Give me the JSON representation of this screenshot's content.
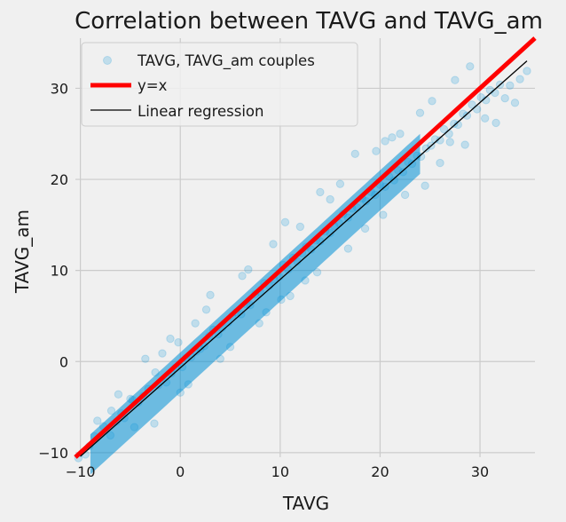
{
  "chart_data": {
    "type": "scatter",
    "title": "Correlation between TAVG and TAVG_am",
    "xlabel": "TAVG",
    "ylabel": "TAVG_am",
    "xlim": [
      -10.5,
      35.5
    ],
    "ylim": [
      -10.5,
      35.5
    ],
    "xticks": [
      -10,
      0,
      10,
      20,
      30
    ],
    "yticks": [
      -10,
      0,
      10,
      20,
      30
    ],
    "grid": true,
    "legend_position": "top-left",
    "series": [
      {
        "name": "TAVG, TAVG_am couples",
        "kind": "scatter",
        "color": "#008fd5",
        "alpha": 0.2,
        "points": [
          [
            -10.2,
            -10.6
          ],
          [
            -9.5,
            -10.2
          ],
          [
            -9.1,
            -9.3
          ],
          [
            -8.6,
            -8.2
          ],
          [
            -7.7,
            -7.1
          ],
          [
            -6.9,
            -5.4
          ],
          [
            -6.4,
            -6.6
          ],
          [
            -5.9,
            -5.7
          ],
          [
            -5.6,
            -6.2
          ],
          [
            -5.0,
            -4.1
          ],
          [
            -4.8,
            -4.2
          ],
          [
            -4.2,
            -4.5
          ],
          [
            -3.7,
            -3.8
          ],
          [
            -3.2,
            -3.0
          ],
          [
            -2.5,
            -1.2
          ],
          [
            -2.2,
            -2.6
          ],
          [
            -1.4,
            -2.3
          ],
          [
            -0.9,
            -1.3
          ],
          [
            -0.5,
            -0.7
          ],
          [
            0.2,
            -0.6
          ],
          [
            0.6,
            0.4
          ],
          [
            1.1,
            0.5
          ],
          [
            1.6,
            1.1
          ],
          [
            2.0,
            1.4
          ],
          [
            2.4,
            1.7
          ],
          [
            2.9,
            2.8
          ],
          [
            3.3,
            3.5
          ],
          [
            3.8,
            3.0
          ],
          [
            4.2,
            3.7
          ],
          [
            4.8,
            4.3
          ],
          [
            5.2,
            5.0
          ],
          [
            5.6,
            5.4
          ],
          [
            6.1,
            5.2
          ],
          [
            6.6,
            6.3
          ],
          [
            7.0,
            6.2
          ],
          [
            7.5,
            7.4
          ],
          [
            8.0,
            7.6
          ],
          [
            8.4,
            8.6
          ],
          [
            8.9,
            8.3
          ],
          [
            9.4,
            9.0
          ],
          [
            9.9,
            9.3
          ],
          [
            10.3,
            10.6
          ],
          [
            10.8,
            10.1
          ],
          [
            11.3,
            11.4
          ],
          [
            11.7,
            11.0
          ],
          [
            12.2,
            11.9
          ],
          [
            12.6,
            12.6
          ],
          [
            13.1,
            12.3
          ],
          [
            13.6,
            13.3
          ],
          [
            14.0,
            13.2
          ],
          [
            14.5,
            14.3
          ],
          [
            15.0,
            14.1
          ],
          [
            15.4,
            14.9
          ],
          [
            15.9,
            15.2
          ],
          [
            16.3,
            16.2
          ],
          [
            16.8,
            15.8
          ],
          [
            17.2,
            16.8
          ],
          [
            17.7,
            16.9
          ],
          [
            18.2,
            17.9
          ],
          [
            18.6,
            17.6
          ],
          [
            19.1,
            18.6
          ],
          [
            19.5,
            18.3
          ],
          [
            20.0,
            19.4
          ],
          [
            20.5,
            19.2
          ],
          [
            20.9,
            20.3
          ],
          [
            21.4,
            19.9
          ],
          [
            21.8,
            21.0
          ],
          [
            22.3,
            20.8
          ],
          [
            22.8,
            21.9
          ],
          [
            23.2,
            21.7
          ],
          [
            23.7,
            22.6
          ],
          [
            24.1,
            22.5
          ],
          [
            24.6,
            23.4
          ],
          [
            25.1,
            23.7
          ],
          [
            25.5,
            24.4
          ],
          [
            26.0,
            24.3
          ],
          [
            26.4,
            25.5
          ],
          [
            26.9,
            25.0
          ],
          [
            27.4,
            26.1
          ],
          [
            27.8,
            26.0
          ],
          [
            28.3,
            27.2
          ],
          [
            28.7,
            27.0
          ],
          [
            29.2,
            28.2
          ],
          [
            29.7,
            27.7
          ],
          [
            30.1,
            29.0
          ],
          [
            30.6,
            28.7
          ],
          [
            31.0,
            29.8
          ],
          [
            31.5,
            29.5
          ],
          [
            32.0,
            30.4
          ],
          [
            32.5,
            28.9
          ],
          [
            33.0,
            30.3
          ],
          [
            34.0,
            31.0
          ],
          [
            34.7,
            31.9
          ],
          [
            -3.5,
            0.3
          ],
          [
            -1.0,
            2.5
          ],
          [
            3.0,
            7.3
          ],
          [
            6.8,
            10.1
          ],
          [
            10.5,
            15.3
          ],
          [
            14.0,
            18.6
          ],
          [
            17.5,
            22.8
          ],
          [
            20.5,
            24.2
          ],
          [
            24.0,
            27.3
          ],
          [
            27.5,
            30.9
          ],
          [
            -2.6,
            -6.8
          ],
          [
            0.8,
            -2.5
          ],
          [
            5.0,
            1.6
          ],
          [
            8.6,
            5.4
          ],
          [
            12.5,
            8.9
          ],
          [
            16.8,
            12.4
          ],
          [
            20.3,
            16.1
          ],
          [
            24.5,
            19.3
          ],
          [
            28.5,
            23.8
          ],
          [
            31.6,
            26.2
          ],
          [
            -8.3,
            -6.5
          ],
          [
            -6.2,
            -3.6
          ],
          [
            1.5,
            4.2
          ],
          [
            9.3,
            12.9
          ],
          [
            15.0,
            17.8
          ],
          [
            22.0,
            25.0
          ],
          [
            29.0,
            32.4
          ],
          [
            0.0,
            -3.4
          ],
          [
            4.0,
            0.3
          ],
          [
            11.0,
            7.2
          ],
          [
            18.5,
            14.6
          ],
          [
            26.0,
            21.8
          ],
          [
            -4.6,
            -7.2
          ],
          [
            7.9,
            4.2
          ],
          [
            13.7,
            9.8
          ],
          [
            22.5,
            18.3
          ],
          [
            30.5,
            26.7
          ],
          [
            2.6,
            5.7
          ],
          [
            6.2,
            9.4
          ],
          [
            19.6,
            23.1
          ],
          [
            25.2,
            28.6
          ],
          [
            -7.0,
            -8.1
          ],
          [
            -1.8,
            0.9
          ],
          [
            12.0,
            14.8
          ],
          [
            21.2,
            24.6
          ],
          [
            27.0,
            24.1
          ],
          [
            33.5,
            28.4
          ],
          [
            16.0,
            19.5
          ],
          [
            10.1,
            6.8
          ],
          [
            -0.2,
            2.1
          ]
        ]
      },
      {
        "name": "y=x",
        "kind": "line",
        "color": "#ff0000",
        "x": [
          -10.5,
          35.5
        ],
        "y": [
          -10.5,
          35.5
        ]
      },
      {
        "name": "Linear regression",
        "kind": "line",
        "color": "#000000",
        "x": [
          -10.0,
          34.7
        ],
        "y": [
          -10.4,
          33.0
        ]
      }
    ]
  }
}
